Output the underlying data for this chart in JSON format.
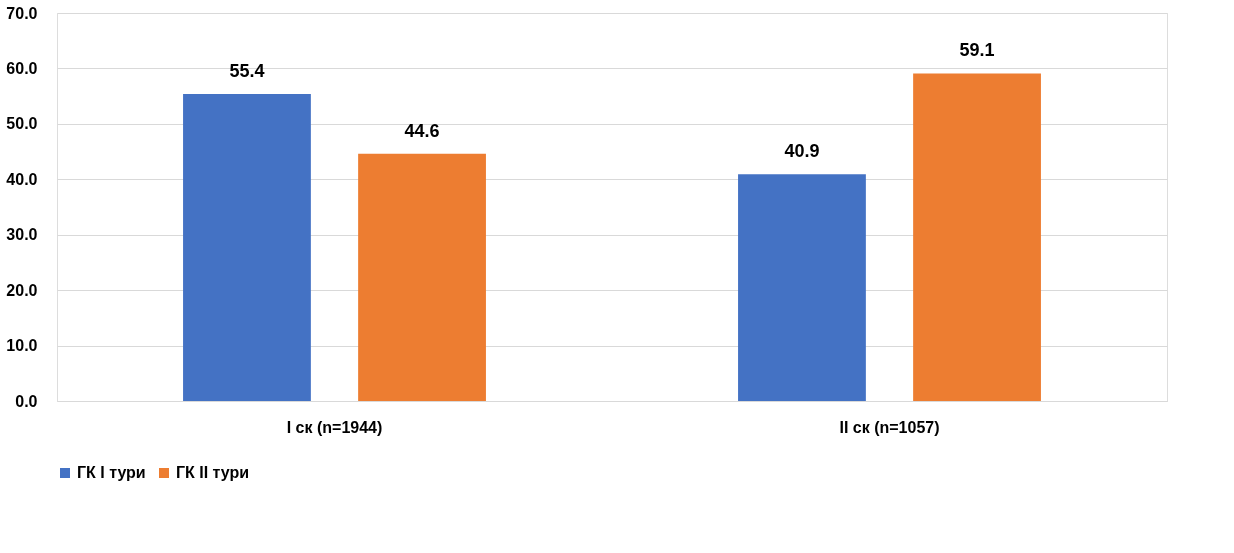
{
  "chart_data": {
    "type": "bar",
    "categories": [
      "I ск (n=1944)",
      "II ск (n=1057)"
    ],
    "series": [
      {
        "name": "ГК I тури",
        "color": "#4472c4",
        "values": [
          55.4,
          40.9
        ]
      },
      {
        "name": "ГК II тури",
        "color": "#ed7d31",
        "values": [
          44.6,
          59.1
        ]
      }
    ],
    "ylim": [
      0,
      70
    ],
    "yticks": [
      {
        "value": 0,
        "label": "0.0"
      },
      {
        "value": 10,
        "label": "10.0"
      },
      {
        "value": 20,
        "label": "20.0"
      },
      {
        "value": 30,
        "label": "30.0"
      },
      {
        "value": 40,
        "label": "40.0"
      },
      {
        "value": 50,
        "label": "50.0"
      },
      {
        "value": 60,
        "label": "60.0"
      },
      {
        "value": 70,
        "label": "70.0"
      }
    ],
    "grid": "y",
    "legend": "bottom",
    "data_labels": true
  }
}
